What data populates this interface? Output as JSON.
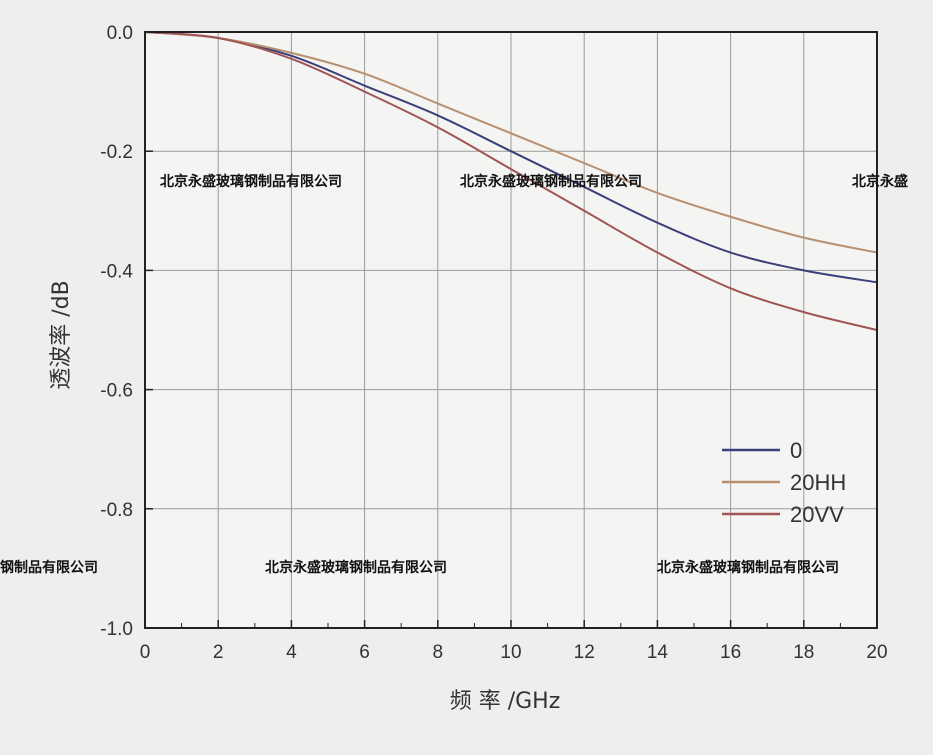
{
  "chart_data": {
    "type": "line",
    "xlabel": "频 率 /GHz",
    "ylabel": "透波率 /dB",
    "xlim": [
      0,
      20
    ],
    "ylim": [
      -1.0,
      0.0
    ],
    "x_ticks": [
      "0",
      "2",
      "4",
      "6",
      "8",
      "10",
      "12",
      "14",
      "16",
      "18",
      "20"
    ],
    "y_ticks": [
      "0.0",
      "-0.2",
      "-0.4",
      "-0.6",
      "-0.8",
      "-1.0"
    ],
    "grid": true,
    "legend_position": "bottom-right",
    "x": [
      0,
      2,
      4,
      6,
      8,
      10,
      12,
      14,
      16,
      18,
      20
    ],
    "series": [
      {
        "name": "0",
        "color": "#3c3f7a",
        "values": [
          0,
          -0.01,
          -0.04,
          -0.09,
          -0.14,
          -0.2,
          -0.26,
          -0.32,
          -0.37,
          -0.4,
          -0.42
        ]
      },
      {
        "name": "20HH",
        "color": "#b89070",
        "values": [
          0,
          -0.01,
          -0.035,
          -0.07,
          -0.12,
          -0.17,
          -0.22,
          -0.27,
          -0.31,
          -0.345,
          -0.37
        ]
      },
      {
        "name": "20VV",
        "color": "#a05555",
        "values": [
          0,
          -0.01,
          -0.045,
          -0.1,
          -0.16,
          -0.23,
          -0.3,
          -0.37,
          -0.43,
          -0.47,
          -0.5
        ]
      }
    ]
  },
  "watermark": "北京永盛玻璃钢制品有限公司",
  "watermark_partial_right": "北京永盛",
  "watermark_partial_left": "钢制品有限公司"
}
